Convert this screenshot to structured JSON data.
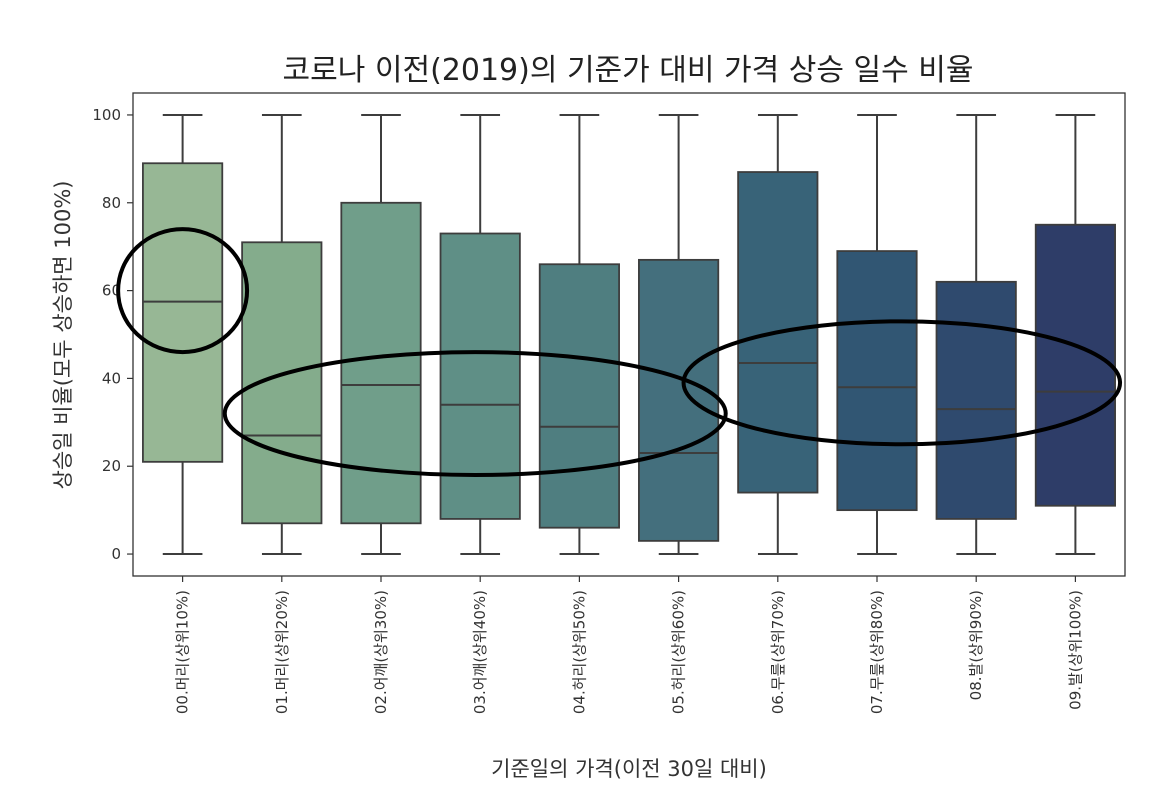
{
  "chart_data": {
    "type": "boxplot",
    "title": "코로나 이전(2019)의 기준가 대비 가격 상승 일수 비율",
    "xlabel": "기준일의 가격(이전 30일 대비)",
    "ylabel": "상승일 비율(모두 상승하면 100%)",
    "ylim": [
      -5,
      105
    ],
    "yticks": [
      0,
      20,
      40,
      60,
      80,
      100
    ],
    "grid": false,
    "categories": [
      "00.머리(상위10%)",
      "01.머리(상위20%)",
      "02.어깨(상위30%)",
      "03.어깨(상위40%)",
      "04.허리(상위50%)",
      "05.허리(상위60%)",
      "06.무릎(상위70%)",
      "07.무릎(상위80%)",
      "08.발(상위90%)",
      "09.발(상위100%)"
    ],
    "boxes": [
      {
        "min": 0,
        "q1": 21,
        "median": 57.5,
        "q3": 89,
        "max": 100,
        "color": "#97b795"
      },
      {
        "min": 0,
        "q1": 7,
        "median": 27,
        "q3": 71,
        "max": 100,
        "color": "#84ac8c"
      },
      {
        "min": 0,
        "q1": 7,
        "median": 38.5,
        "q3": 80,
        "max": 100,
        "color": "#709e8a"
      },
      {
        "min": 0,
        "q1": 8,
        "median": 34,
        "q3": 73,
        "max": 100,
        "color": "#5f8f86"
      },
      {
        "min": 0,
        "q1": 6,
        "median": 29,
        "q3": 66,
        "max": 100,
        "color": "#4f7e80"
      },
      {
        "min": 0,
        "q1": 3,
        "median": 23,
        "q3": 67,
        "max": 100,
        "color": "#446f7d"
      },
      {
        "min": 0,
        "q1": 14,
        "median": 43.5,
        "q3": 87,
        "max": 100,
        "color": "#386378"
      },
      {
        "min": 0,
        "q1": 10,
        "median": 38,
        "q3": 69,
        "max": 100,
        "color": "#315673"
      },
      {
        "min": 0,
        "q1": 8,
        "median": 33,
        "q3": 62,
        "max": 100,
        "color": "#2f4a6e"
      },
      {
        "min": 0,
        "q1": 11,
        "median": 37,
        "q3": 75,
        "max": 100,
        "color": "#2e3d68"
      }
    ],
    "annotations": [
      {
        "shape": "ellipse",
        "center": [
          0,
          60
        ],
        "spans_categories": [
          -0.65,
          0.65
        ],
        "spans_y": [
          46,
          74
        ]
      },
      {
        "shape": "ellipse",
        "center": [
          2.95,
          32
        ],
        "spans_categories": [
          0.45,
          5.5
        ],
        "spans_y": [
          18,
          46
        ]
      },
      {
        "shape": "ellipse",
        "center": [
          7.25,
          39
        ],
        "spans_categories": [
          5.05,
          9.45
        ],
        "spans_y": [
          25,
          53
        ]
      }
    ]
  }
}
